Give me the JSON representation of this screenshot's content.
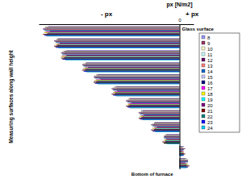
{
  "chart_data": {
    "type": "bar",
    "orientation": "horizontal",
    "title": "px [N/m2]",
    "ylabel": "Measuring surfaces along wall height",
    "annotations": [
      "- px",
      "+ px",
      "Glass surface",
      "Bottom of furnace"
    ],
    "categories": [
      null,
      null,
      null,
      null,
      null,
      null,
      null,
      null,
      null,
      null,
      null,
      null
    ],
    "xlim": [
      -100,
      10
    ],
    "xticks": [
      0
    ],
    "tick_labels": "x",
    "legend": "right",
    "series": [
      {
        "name": "8",
        "color": "#9999ff",
        "values": [
          -93,
          -86,
          -80,
          -66,
          -58,
          -45,
          -35,
          -27,
          -17,
          -9,
          3,
          5
        ]
      },
      {
        "name": "9",
        "color": "#993366",
        "values": [
          -95,
          -87,
          -82,
          -67,
          -59,
          -46,
          -36,
          -26,
          -18,
          -10,
          2,
          4
        ]
      },
      {
        "name": "10",
        "color": "#ffffcc",
        "values": [
          -96,
          -88,
          -83,
          -68,
          -60,
          -47,
          -37,
          -28,
          -19,
          -11,
          3,
          6
        ]
      },
      {
        "name": "11",
        "color": "#ccffff",
        "values": [
          -94,
          -86,
          -81,
          -66,
          -58,
          -44,
          -35,
          -27,
          -18,
          -10,
          2,
          5
        ]
      },
      {
        "name": "12",
        "color": "#660066",
        "values": [
          -97,
          -89,
          -84,
          -69,
          -61,
          -48,
          -38,
          -29,
          -20,
          -11,
          4,
          6
        ]
      },
      {
        "name": "13",
        "color": "#ff8080",
        "values": [
          -95,
          -87,
          -82,
          -67,
          -59,
          -46,
          -36,
          -27,
          -18,
          -10,
          3,
          5
        ]
      },
      {
        "name": "14",
        "color": "#0066cc",
        "values": [
          -96,
          -88,
          -83,
          -68,
          -60,
          -47,
          -37,
          -28,
          -19,
          -11,
          3,
          6
        ]
      },
      {
        "name": "15",
        "color": "#ccccff",
        "values": [
          -94,
          -86,
          -81,
          -66,
          -57,
          -45,
          -35,
          -26,
          -17,
          -9,
          2,
          4
        ]
      },
      {
        "name": "16",
        "color": "#000080",
        "values": [
          -92,
          -85,
          -80,
          -65,
          -56,
          -44,
          -34,
          -25,
          -16,
          -9,
          2,
          4
        ]
      },
      {
        "name": "17",
        "color": "#ff00ff",
        "values": [
          -95,
          -87,
          -83,
          -67,
          -59,
          -46,
          -36,
          -27,
          -18,
          -10,
          3,
          5
        ]
      },
      {
        "name": "18",
        "color": "#ffff00",
        "values": [
          -96,
          -88,
          -84,
          -68,
          -60,
          -47,
          -37,
          -28,
          -19,
          -11,
          3,
          6
        ]
      },
      {
        "name": "19",
        "color": "#00ffff",
        "values": [
          -93,
          -86,
          -81,
          -66,
          -58,
          -45,
          -35,
          -26,
          -17,
          -10,
          2,
          5
        ]
      },
      {
        "name": "20",
        "color": "#800080",
        "values": [
          -94,
          -87,
          -82,
          -67,
          -59,
          -46,
          -36,
          -27,
          -18,
          -10,
          3,
          5
        ]
      },
      {
        "name": "21",
        "color": "#800000",
        "values": [
          -97,
          -89,
          -84,
          -69,
          -61,
          -48,
          -38,
          -29,
          -20,
          -12,
          4,
          7
        ]
      },
      {
        "name": "22",
        "color": "#008080",
        "values": [
          -95,
          -87,
          -82,
          -67,
          -59,
          -46,
          -36,
          -27,
          -18,
          -10,
          3,
          5
        ]
      },
      {
        "name": "23",
        "color": "#0000ff",
        "values": [
          -96,
          -88,
          -83,
          -68,
          -60,
          -47,
          -37,
          -28,
          -19,
          -11,
          3,
          6
        ]
      },
      {
        "name": "24",
        "color": "#00ccff",
        "values": [
          -94,
          -86,
          -81,
          -66,
          -58,
          -45,
          -35,
          -26,
          -17,
          -9,
          2,
          5
        ]
      }
    ]
  }
}
